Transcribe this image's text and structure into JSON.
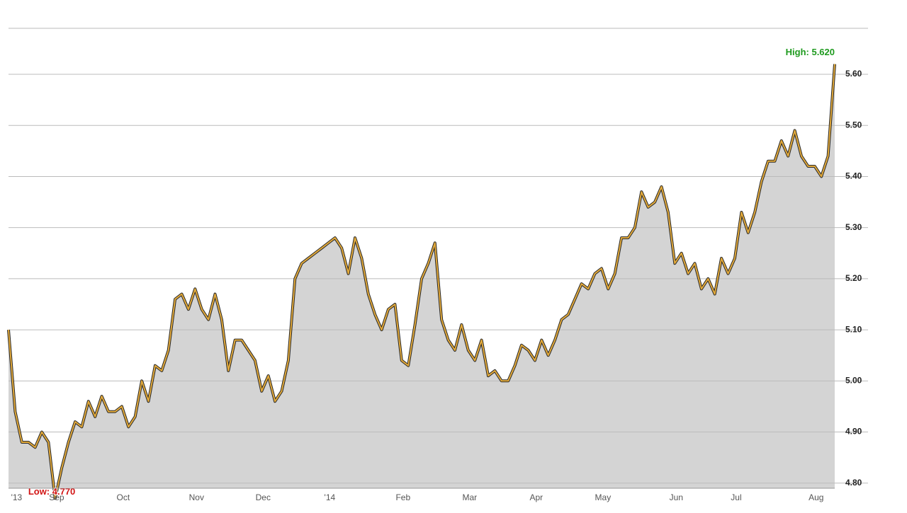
{
  "chart_data": {
    "type": "area",
    "categories": [
      null,
      "'13",
      null,
      null,
      null,
      null,
      null,
      "Sep",
      null,
      null,
      null,
      null,
      null,
      null,
      null,
      null,
      null,
      "Oct",
      null,
      null,
      null,
      null,
      null,
      null,
      null,
      null,
      null,
      null,
      "Nov",
      null,
      null,
      null,
      null,
      null,
      null,
      null,
      null,
      null,
      "Dec",
      null,
      null,
      null,
      null,
      null,
      null,
      null,
      null,
      null,
      "'14",
      null,
      null,
      null,
      null,
      null,
      null,
      null,
      null,
      null,
      null,
      "Feb",
      null,
      null,
      null,
      null,
      null,
      null,
      null,
      null,
      null,
      "Mar",
      null,
      null,
      null,
      null,
      null,
      null,
      null,
      null,
      null,
      "Apr",
      null,
      null,
      null,
      null,
      null,
      null,
      null,
      null,
      null,
      "May",
      null,
      null,
      null,
      null,
      null,
      null,
      null,
      null,
      null,
      null,
      "Jun",
      null,
      null,
      null,
      null,
      null,
      null,
      null,
      null,
      "Jul",
      null,
      null,
      null,
      null,
      null,
      null,
      null,
      null,
      null,
      null,
      null,
      "Aug",
      null,
      null,
      null
    ],
    "values": [
      5.1,
      4.94,
      4.88,
      4.88,
      4.87,
      4.9,
      4.88,
      4.77,
      4.83,
      4.88,
      4.92,
      4.91,
      4.96,
      4.93,
      4.97,
      4.94,
      4.94,
      4.95,
      4.91,
      4.93,
      5.0,
      4.96,
      5.03,
      5.02,
      5.06,
      5.16,
      5.17,
      5.14,
      5.18,
      5.14,
      5.12,
      5.17,
      5.12,
      5.02,
      5.08,
      5.08,
      5.06,
      5.04,
      4.98,
      5.01,
      4.96,
      4.98,
      5.04,
      5.2,
      5.23,
      5.24,
      5.25,
      5.26,
      5.27,
      5.28,
      5.26,
      5.21,
      5.28,
      5.24,
      5.17,
      5.13,
      5.1,
      5.14,
      5.15,
      5.04,
      5.03,
      5.11,
      5.2,
      5.23,
      5.27,
      5.12,
      5.08,
      5.06,
      5.11,
      5.06,
      5.04,
      5.08,
      5.01,
      5.02,
      5.0,
      5.0,
      5.03,
      5.07,
      5.06,
      5.04,
      5.08,
      5.05,
      5.08,
      5.12,
      5.13,
      5.16,
      5.19,
      5.18,
      5.21,
      5.22,
      5.18,
      5.21,
      5.28,
      5.28,
      5.3,
      5.37,
      5.34,
      5.35,
      5.38,
      5.33,
      5.23,
      5.25,
      5.21,
      5.23,
      5.18,
      5.2,
      5.17,
      5.24,
      5.21,
      5.24,
      5.33,
      5.29,
      5.33,
      5.39,
      5.43,
      5.43,
      5.47,
      5.44,
      5.49,
      5.44,
      5.42,
      5.42,
      5.4,
      5.44,
      5.62
    ],
    "color": "#e2a93a",
    "fill_color": "#d4d4d4",
    "ylim": [
      4.79,
      5.69
    ],
    "yticks": [
      {
        "value": 4.8,
        "label": "4.80"
      },
      {
        "value": 4.9,
        "label": "4.90"
      },
      {
        "value": 5.0,
        "label": "5.00"
      },
      {
        "value": 5.1,
        "label": "5.10"
      },
      {
        "value": 5.2,
        "label": "5.20"
      },
      {
        "value": 5.3,
        "label": "5.30"
      },
      {
        "value": 5.4,
        "label": "5.40"
      },
      {
        "value": 5.5,
        "label": "5.50"
      },
      {
        "value": 5.6,
        "label": "5.60"
      }
    ],
    "grid": true,
    "high_label": "High: 5.620",
    "low_label": "Low: 4.770"
  }
}
